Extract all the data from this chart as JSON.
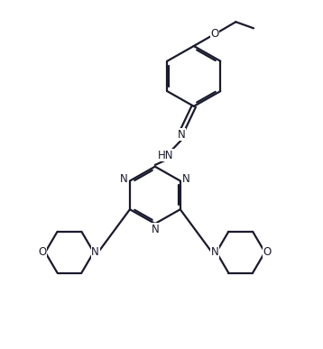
{
  "background_color": "#ffffff",
  "line_color": "#1a1a2e",
  "line_width": 1.6,
  "font_size": 8.5,
  "figsize": [
    3.58,
    3.87
  ],
  "dpi": 100,
  "xlim": [
    0,
    10
  ],
  "ylim": [
    0,
    11
  ]
}
